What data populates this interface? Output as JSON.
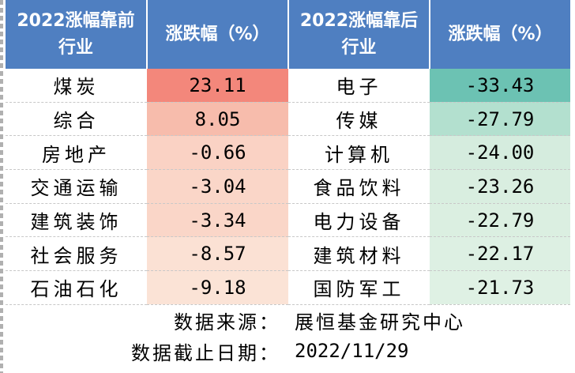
{
  "chart_data": {
    "type": "table",
    "columns": [
      "2022涨幅靠前行业",
      "涨跌幅（%）",
      "2022涨幅靠后行业",
      "涨跌幅（%）"
    ],
    "top": [
      {
        "industry": "煤炭",
        "value": "23.11"
      },
      {
        "industry": "综合",
        "value": "8.05"
      },
      {
        "industry": "房地产",
        "value": "-0.66"
      },
      {
        "industry": "交通运输",
        "value": "-3.04"
      },
      {
        "industry": "建筑装饰",
        "value": "-3.34"
      },
      {
        "industry": "社会服务",
        "value": "-8.57"
      },
      {
        "industry": "石油石化",
        "value": "-9.18"
      }
    ],
    "bottom": [
      {
        "industry": "电子",
        "value": "-33.43"
      },
      {
        "industry": "传媒",
        "value": "-27.79"
      },
      {
        "industry": "计算机",
        "value": "-24.00"
      },
      {
        "industry": "食品饮料",
        "value": "-23.26"
      },
      {
        "industry": "电力设备",
        "value": "-22.79"
      },
      {
        "industry": "建筑材料",
        "value": "-22.17"
      },
      {
        "industry": "国防军工",
        "value": "-21.73"
      }
    ],
    "top_colors": [
      "#f3877b",
      "#f7bcac",
      "#fad2c4",
      "#fad6c8",
      "#fad6c8",
      "#fbe1d4",
      "#fbe3d6"
    ],
    "bottom_colors": [
      "#6cc2b3",
      "#b3e0cf",
      "#d5ecde",
      "#d9eee0",
      "#dbefe1",
      "#ddf0e3",
      "#dff1e4"
    ]
  },
  "header": {
    "top_industry_line1": "2022涨幅靠前",
    "top_industry_line2": "行业",
    "top_change": "涨跌幅（%）",
    "bottom_industry_line1": "2022涨幅靠后",
    "bottom_industry_line2": "行业",
    "bottom_change": "涨跌幅（%）"
  },
  "footer": {
    "source_label": "数据来源：",
    "source_value": "展恒基金研究中心",
    "date_label": "数据截止日期：",
    "date_value": "2022/11/29"
  }
}
